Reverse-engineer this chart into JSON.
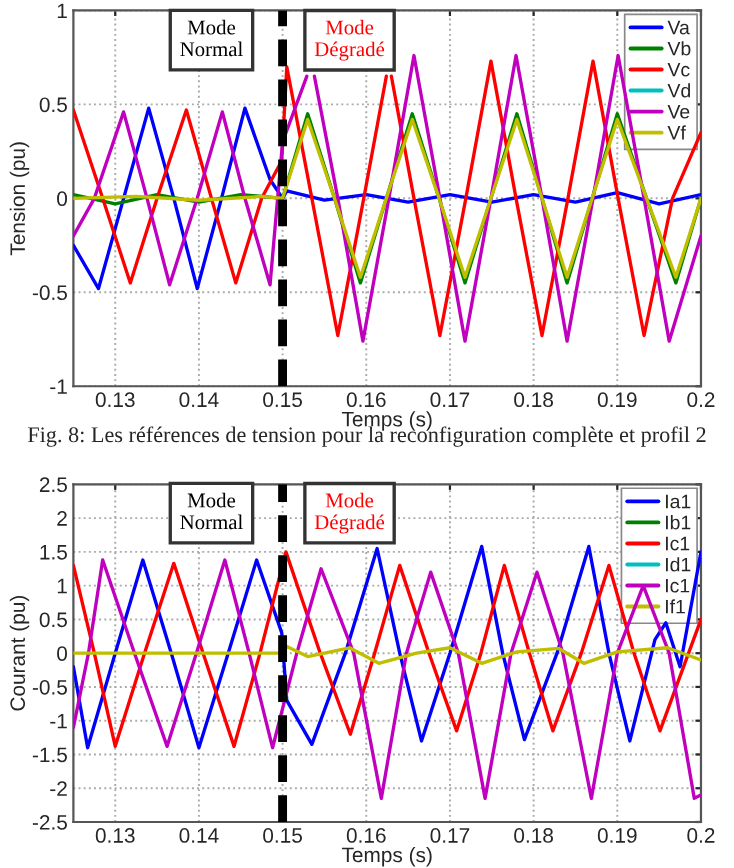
{
  "chart_data": [
    {
      "type": "line",
      "xlabel": "Temps (s)",
      "ylabel": "Tension (pu)",
      "xlim": [
        0.125,
        0.2
      ],
      "xticks": [
        0.13,
        0.14,
        0.15,
        0.16,
        0.17,
        0.18,
        0.19,
        0.2
      ],
      "ylim": [
        -1,
        1
      ],
      "yticks": [
        -1,
        -0.5,
        0,
        0.5,
        1
      ],
      "grid": true,
      "legend": "top right",
      "line_style": "solid",
      "ref_lines": [
        {
          "axis": "x",
          "value": 0.15,
          "color": "#000000",
          "line_style": "dashed"
        }
      ],
      "annotations": [
        "Mode Normal",
        "Mode Dégradé",
        "Fig. 8: Les références de tension pour la reconfiguration complète et profil 2"
      ],
      "series": [
        {
          "name": "Va",
          "color": "#0000ff",
          "x": [
            0.125,
            0.128,
            0.131,
            0.134,
            0.137,
            0.1398,
            0.1427,
            0.1455,
            0.1485,
            0.15,
            0.1505,
            0.155,
            0.16,
            0.165,
            0.17,
            0.175,
            0.18,
            0.185,
            0.19,
            0.195,
            0.2
          ],
          "values": [
            -0.25,
            -0.48,
            0,
            0.48,
            0,
            -0.48,
            0,
            0.48,
            0.1,
            0,
            0.04,
            -0.01,
            0.02,
            -0.02,
            0.02,
            -0.02,
            0.02,
            -0.02,
            0.03,
            -0.03,
            0.02
          ]
        },
        {
          "name": "Vb",
          "color": "#008000",
          "x": [
            0.125,
            0.13,
            0.135,
            0.14,
            0.145,
            0.15,
            0.153,
            0.1562,
            0.1593,
            0.1624,
            0.1655,
            0.1687,
            0.1718,
            0.1749,
            0.178,
            0.181,
            0.184,
            0.187,
            0.19,
            0.1935,
            0.197,
            0.2
          ],
          "values": [
            0.02,
            -0.03,
            0.02,
            -0.02,
            0.02,
            0,
            0.45,
            0,
            -0.45,
            0,
            0.45,
            0,
            -0.45,
            0,
            0.45,
            0,
            -0.45,
            0,
            0.45,
            0,
            -0.45,
            0
          ]
        },
        {
          "name": "Vc",
          "color": "#ff0000",
          "x": [
            0.125,
            0.1285,
            0.1318,
            0.135,
            0.1385,
            0.1415,
            0.1444,
            0.1475,
            0.1499,
            0.1505,
            0.1535,
            0.1566,
            0.1597,
            0.1624,
            0.1627,
            0.163,
            0.1657,
            0.1688,
            0.1719,
            0.1749,
            0.1779,
            0.181,
            0.1841,
            0.1871,
            0.1901,
            0.1932,
            0.1966,
            0.2
          ],
          "values": [
            0.47,
            0,
            -0.45,
            0,
            0.47,
            0,
            -0.45,
            0,
            0.2,
            0.7,
            0,
            -0.73,
            0,
            0.65,
            null,
            0.65,
            0,
            -0.73,
            0,
            0.73,
            0,
            -0.73,
            0,
            0.73,
            0,
            -0.73,
            0,
            0.35
          ]
        },
        {
          "name": "Vd",
          "color": "#00bfbf",
          "values": [
            null,
            null
          ]
        },
        {
          "name": "Ve",
          "color": "#bf00bf",
          "x": [
            0.125,
            0.1275,
            0.131,
            0.1338,
            0.1365,
            0.1398,
            0.1428,
            0.1455,
            0.1485,
            0.15,
            0.1529,
            0.1535,
            0.1538,
            0.1566,
            0.1596,
            0.1627,
            0.1657,
            0.1688,
            0.1718,
            0.1749,
            0.1779,
            0.181,
            0.184,
            0.1871,
            0.1901,
            0.1932,
            0.1962,
            0.2
          ],
          "values": [
            -0.2,
            0,
            0.46,
            0,
            -0.46,
            0,
            0.46,
            0,
            -0.46,
            0.3,
            0.65,
            null,
            0.65,
            0,
            -0.76,
            0,
            0.76,
            0,
            -0.76,
            0,
            0.76,
            0,
            -0.76,
            0,
            0.76,
            0,
            -0.76,
            -0.2
          ]
        },
        {
          "name": "Vf",
          "color": "#bfbf00",
          "x": [
            0.125,
            0.1325,
            0.14,
            0.1475,
            0.15,
            0.153,
            0.1562,
            0.1593,
            0.1624,
            0.1655,
            0.1687,
            0.1718,
            0.1749,
            0.178,
            0.181,
            0.184,
            0.187,
            0.19,
            0.1935,
            0.197,
            0.2
          ],
          "values": [
            0,
            0.01,
            -0.01,
            0.01,
            0,
            0.42,
            0,
            -0.42,
            0,
            0.42,
            0,
            -0.42,
            0,
            0.42,
            0,
            -0.42,
            0,
            0.42,
            0,
            -0.42,
            0
          ]
        }
      ]
    },
    {
      "type": "line",
      "xlabel": "Temps (s)",
      "ylabel": "Courant (pu)",
      "xlim": [
        0.125,
        0.2
      ],
      "xticks": [
        0.13,
        0.14,
        0.15,
        0.16,
        0.17,
        0.18,
        0.19,
        0.2
      ],
      "ylim": [
        -2.5,
        2.5
      ],
      "yticks": [
        -2.5,
        -2,
        -1.5,
        -1,
        -0.5,
        0,
        0.5,
        1,
        1.5,
        2,
        2.5
      ],
      "grid": true,
      "legend": "top right",
      "line_style": "solid",
      "ref_lines": [
        {
          "axis": "x",
          "value": 0.15,
          "color": "#000000",
          "line_style": "dashed"
        }
      ],
      "annotations": [
        "Mode Normal",
        "Mode Dégradé"
      ],
      "series": [
        {
          "name": "Ia1",
          "color": "#0000ff",
          "x": [
            0.125,
            0.1267,
            0.13,
            0.1333,
            0.1367,
            0.14,
            0.1435,
            0.1469,
            0.1499,
            0.1505,
            0.1535,
            0.1575,
            0.1613,
            0.164,
            0.1666,
            0.17,
            0.1738,
            0.1763,
            0.1789,
            0.1828,
            0.1866,
            0.189,
            0.1915,
            0.1945,
            0.1958,
            0.1975,
            0.2
          ],
          "values": [
            -0.2,
            -1.4,
            0,
            1.38,
            0,
            -1.4,
            0,
            1.38,
            0.3,
            -0.7,
            -1.35,
            0,
            1.55,
            0,
            -1.3,
            0,
            1.58,
            0,
            -1.28,
            0,
            1.58,
            0,
            -1.3,
            0.2,
            0.45,
            -0.2,
            1.5
          ]
        },
        {
          "name": "Ib1",
          "color": "#008000",
          "values": [
            null,
            null
          ]
        },
        {
          "name": "Ic1",
          "color": "#ff0000",
          "x": [
            0.125,
            0.1275,
            0.13,
            0.1335,
            0.137,
            0.1405,
            0.1442,
            0.1473,
            0.1504,
            0.1545,
            0.1581,
            0.161,
            0.164,
            0.1675,
            0.1708,
            0.1737,
            0.1765,
            0.1795,
            0.1823,
            0.1857,
            0.189,
            0.192,
            0.1951,
            0.2
          ],
          "values": [
            1.3,
            0,
            -1.38,
            0,
            1.33,
            0,
            -1.38,
            0,
            1.5,
            0,
            -1.2,
            0,
            1.3,
            0,
            -1.15,
            0,
            1.3,
            0,
            -1.15,
            0,
            1.3,
            0,
            -1.15,
            0.5
          ]
        },
        {
          "name": "Id1",
          "color": "#00bfbf",
          "values": [
            null,
            null
          ]
        },
        {
          "name": "Ic1",
          "color": "#bf00bf",
          "x": [
            0.125,
            0.1268,
            0.1285,
            0.1323,
            0.1362,
            0.1397,
            0.1431,
            0.146,
            0.1488,
            0.1517,
            0.1546,
            0.1585,
            0.1618,
            0.1648,
            0.1677,
            0.171,
            0.1742,
            0.1773,
            0.1804,
            0.1835,
            0.1869,
            0.19,
            0.1931,
            0.1962,
            0.1992,
            0.2
          ],
          "values": [
            -1.1,
            0,
            1.38,
            0,
            -1.38,
            0,
            1.38,
            0,
            -1.4,
            0,
            1.25,
            0,
            -2.15,
            0,
            1.2,
            0,
            -2.15,
            0,
            1.2,
            0,
            -2.15,
            0,
            1.0,
            0,
            -2.15,
            -2.1
          ]
        },
        {
          "name": "If1",
          "color": "#bfbf00",
          "x": [
            0.125,
            0.1375,
            0.15,
            0.1505,
            0.153,
            0.158,
            0.1615,
            0.166,
            0.17,
            0.1738,
            0.178,
            0.183,
            0.186,
            0.19,
            0.196,
            0.2
          ],
          "values": [
            0,
            0,
            0,
            0.1,
            -0.05,
            0.08,
            -0.15,
            0,
            0.08,
            -0.15,
            0.02,
            0.07,
            -0.15,
            0.02,
            0.08,
            -0.1
          ]
        }
      ]
    }
  ]
}
